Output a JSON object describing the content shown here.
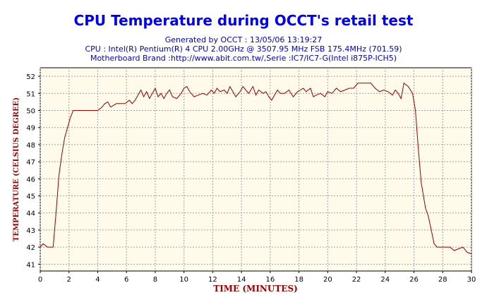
{
  "header": {
    "title": "CPU Temperature during OCCT's retail test",
    "generated": "Generated by OCCT : 13/05/06 13:19:27",
    "cpu": "CPU : Intel(R) Pentium(R) 4 CPU 2.00GHz @ 3507.95 MHz FSB 175.4MHz (701.59)",
    "motherboard": "Motherboard Brand :http://www.abit.com.tw/,Serie :IC7/IC7-G(Intel i875P-ICH5)"
  },
  "colors": {
    "title": "#0000ee",
    "subtitle": "#0000cc",
    "axis_label": "#990000",
    "line": "#990000",
    "plot_bg": "#fffaea",
    "grid": "#a0a0a0"
  },
  "chart_data": {
    "type": "line",
    "xlabel": "TIME (MINUTES)",
    "ylabel": "TEMPERATURE (CELSIUS DEGREE)",
    "xlim": [
      0,
      30
    ],
    "ylim": [
      40.6,
      52.5
    ],
    "x_ticks": [
      0,
      2,
      4,
      6,
      8,
      10,
      12,
      14,
      16,
      18,
      20,
      22,
      24,
      26,
      28,
      30
    ],
    "y_ticks": [
      41,
      42,
      43,
      44,
      45,
      46,
      47,
      48,
      49,
      50,
      51,
      52
    ],
    "grid": true,
    "series": [
      {
        "name": "",
        "points": [
          [
            0,
            42.0
          ],
          [
            0.2,
            42.2
          ],
          [
            0.5,
            42.0
          ],
          [
            0.9,
            42.0
          ],
          [
            1.1,
            44.0
          ],
          [
            1.3,
            46.2
          ],
          [
            1.5,
            47.4
          ],
          [
            1.7,
            48.4
          ],
          [
            1.9,
            49.0
          ],
          [
            2.1,
            49.6
          ],
          [
            2.3,
            50.0
          ],
          [
            2.6,
            50.0
          ],
          [
            3.0,
            50.0
          ],
          [
            3.5,
            50.0
          ],
          [
            4.0,
            50.0
          ],
          [
            4.3,
            50.2
          ],
          [
            4.5,
            50.4
          ],
          [
            4.7,
            50.5
          ],
          [
            4.9,
            50.2
          ],
          [
            5.1,
            50.3
          ],
          [
            5.3,
            50.4
          ],
          [
            5.6,
            50.4
          ],
          [
            5.9,
            50.4
          ],
          [
            6.2,
            50.6
          ],
          [
            6.4,
            50.4
          ],
          [
            6.6,
            50.6
          ],
          [
            6.8,
            50.9
          ],
          [
            7.0,
            51.2
          ],
          [
            7.2,
            50.8
          ],
          [
            7.4,
            51.1
          ],
          [
            7.6,
            50.7
          ],
          [
            7.8,
            51.0
          ],
          [
            8.0,
            51.3
          ],
          [
            8.2,
            50.8
          ],
          [
            8.4,
            51.0
          ],
          [
            8.6,
            50.7
          ],
          [
            8.8,
            51.0
          ],
          [
            9.0,
            51.2
          ],
          [
            9.2,
            50.8
          ],
          [
            9.5,
            50.7
          ],
          [
            9.8,
            51.0
          ],
          [
            10.0,
            51.3
          ],
          [
            10.2,
            51.4
          ],
          [
            10.4,
            51.1
          ],
          [
            10.7,
            50.8
          ],
          [
            11.0,
            50.9
          ],
          [
            11.3,
            51.0
          ],
          [
            11.6,
            50.9
          ],
          [
            11.9,
            51.2
          ],
          [
            12.1,
            51.0
          ],
          [
            12.3,
            51.3
          ],
          [
            12.5,
            51.1
          ],
          [
            12.8,
            51.2
          ],
          [
            13.0,
            51.0
          ],
          [
            13.2,
            51.4
          ],
          [
            13.4,
            51.1
          ],
          [
            13.6,
            50.8
          ],
          [
            13.9,
            51.1
          ],
          [
            14.1,
            51.4
          ],
          [
            14.3,
            51.2
          ],
          [
            14.5,
            51.0
          ],
          [
            14.8,
            51.4
          ],
          [
            15.0,
            50.9
          ],
          [
            15.2,
            51.2
          ],
          [
            15.5,
            51.0
          ],
          [
            15.7,
            51.1
          ],
          [
            15.9,
            50.8
          ],
          [
            16.1,
            50.6
          ],
          [
            16.3,
            50.9
          ],
          [
            16.5,
            51.2
          ],
          [
            16.7,
            51.0
          ],
          [
            17.0,
            51.0
          ],
          [
            17.3,
            51.2
          ],
          [
            17.6,
            50.8
          ],
          [
            17.9,
            51.1
          ],
          [
            18.1,
            51.2
          ],
          [
            18.3,
            51.3
          ],
          [
            18.5,
            51.1
          ],
          [
            18.8,
            51.3
          ],
          [
            19.0,
            50.8
          ],
          [
            19.2,
            50.9
          ],
          [
            19.5,
            51.0
          ],
          [
            19.8,
            50.8
          ],
          [
            20.0,
            51.1
          ],
          [
            20.3,
            51.0
          ],
          [
            20.6,
            51.3
          ],
          [
            20.9,
            51.1
          ],
          [
            21.2,
            51.2
          ],
          [
            21.5,
            51.3
          ],
          [
            21.8,
            51.3
          ],
          [
            22.1,
            51.6
          ],
          [
            22.5,
            51.6
          ],
          [
            23.0,
            51.6
          ],
          [
            23.3,
            51.3
          ],
          [
            23.6,
            51.1
          ],
          [
            23.9,
            51.2
          ],
          [
            24.2,
            51.1
          ],
          [
            24.5,
            50.9
          ],
          [
            24.7,
            51.2
          ],
          [
            24.9,
            51.0
          ],
          [
            25.1,
            50.7
          ],
          [
            25.3,
            51.6
          ],
          [
            25.6,
            51.4
          ],
          [
            25.9,
            51.0
          ],
          [
            26.1,
            50.0
          ],
          [
            26.3,
            47.8
          ],
          [
            26.5,
            45.8
          ],
          [
            26.8,
            44.3
          ],
          [
            27.0,
            43.8
          ],
          [
            27.2,
            43.0
          ],
          [
            27.4,
            42.2
          ],
          [
            27.6,
            42.0
          ],
          [
            28.0,
            42.0
          ],
          [
            28.5,
            42.0
          ],
          [
            28.8,
            41.8
          ],
          [
            29.1,
            41.9
          ],
          [
            29.4,
            42.0
          ],
          [
            29.7,
            41.7
          ],
          [
            30.0,
            41.6
          ]
        ]
      }
    ]
  }
}
